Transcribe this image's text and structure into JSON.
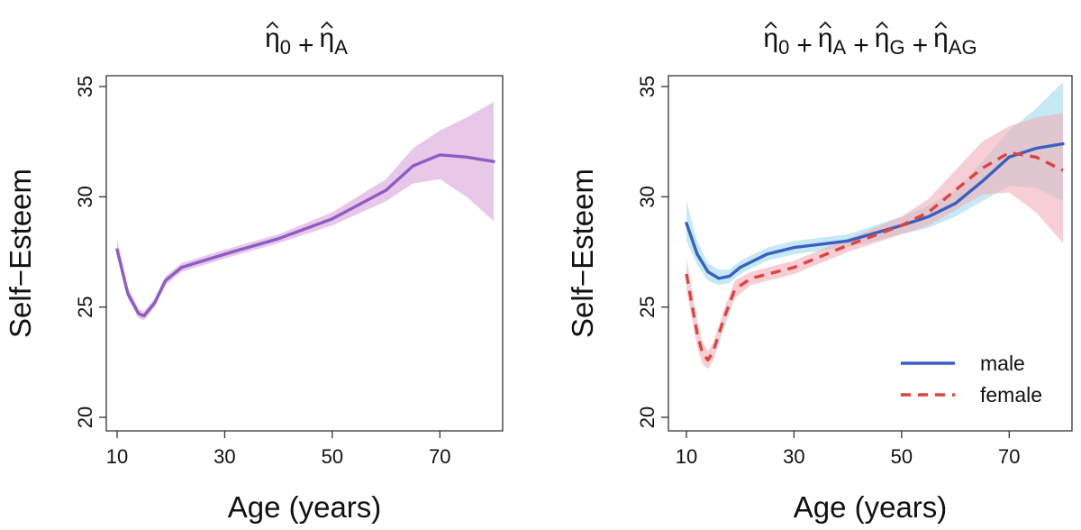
{
  "chart_data": [
    {
      "type": "line",
      "title_parts": [
        {
          "base": "η",
          "sub": "0",
          "op": "+"
        },
        {
          "base": "η",
          "sub": "A",
          "op": ""
        }
      ],
      "xlabel": "Age (years)",
      "ylabel": "Self−Esteem",
      "xlim": [
        10,
        80
      ],
      "ylim": [
        20,
        35
      ],
      "xticks": [
        10,
        30,
        50,
        70
      ],
      "yticks": [
        20,
        25,
        30,
        35
      ],
      "grid": false,
      "legend": null,
      "series": [
        {
          "color": "#8e5cc5",
          "band_color": "#d9a4d8",
          "dash": "",
          "x": [
            10,
            12,
            14,
            15,
            17,
            19,
            22,
            30,
            40,
            50,
            60,
            65,
            70,
            75,
            80
          ],
          "y": [
            27.6,
            25.6,
            24.7,
            24.6,
            25.2,
            26.2,
            26.8,
            27.4,
            28.1,
            29.0,
            30.3,
            31.4,
            31.9,
            31.8,
            31.6
          ],
          "lower": [
            27.3,
            25.4,
            24.5,
            24.4,
            25.0,
            26.0,
            26.6,
            27.2,
            27.9,
            28.7,
            29.8,
            30.6,
            30.8,
            30.0,
            28.9
          ],
          "upper": [
            28.1,
            25.9,
            24.9,
            24.8,
            25.4,
            26.4,
            27.0,
            27.6,
            28.3,
            29.3,
            30.8,
            32.2,
            33.0,
            33.6,
            34.3
          ]
        }
      ]
    },
    {
      "type": "line",
      "title_parts": [
        {
          "base": "η",
          "sub": "0",
          "op": "+"
        },
        {
          "base": "η",
          "sub": "A",
          "op": "+"
        },
        {
          "base": "η",
          "sub": "G",
          "op": "+"
        },
        {
          "base": "η",
          "sub": "AG",
          "op": ""
        }
      ],
      "xlabel": "Age (years)",
      "ylabel": "Self−Esteem",
      "xlim": [
        10,
        80
      ],
      "ylim": [
        20,
        35
      ],
      "xticks": [
        10,
        30,
        50,
        70
      ],
      "yticks": [
        20,
        25,
        30,
        35
      ],
      "grid": false,
      "legend": "bottom-right",
      "series": [
        {
          "name": "male",
          "color": "#3a5fbf",
          "band_color": "#9fdcee",
          "dash": "",
          "x": [
            10,
            12,
            14,
            16,
            18,
            20,
            25,
            30,
            40,
            50,
            55,
            60,
            65,
            70,
            75,
            80
          ],
          "y": [
            28.8,
            27.4,
            26.6,
            26.3,
            26.4,
            26.8,
            27.4,
            27.7,
            28.0,
            28.7,
            29.1,
            29.7,
            30.7,
            31.8,
            32.2,
            32.4
          ],
          "lower": [
            28.0,
            26.9,
            26.2,
            26.0,
            26.1,
            26.5,
            27.1,
            27.4,
            27.7,
            28.3,
            28.6,
            29.1,
            29.8,
            30.5,
            30.4,
            29.8
          ],
          "upper": [
            29.8,
            28.0,
            27.0,
            26.7,
            26.7,
            27.1,
            27.7,
            28.0,
            28.3,
            29.1,
            29.6,
            30.3,
            31.6,
            33.0,
            34.0,
            35.2
          ]
        },
        {
          "name": "female",
          "color": "#e0433e",
          "band_color": "#f2aeb6",
          "dash": "11 8",
          "x": [
            10,
            12,
            13,
            14,
            15,
            17,
            19,
            22,
            30,
            40,
            50,
            55,
            60,
            65,
            70,
            75,
            80
          ],
          "y": [
            26.5,
            23.8,
            22.9,
            22.6,
            23.0,
            24.5,
            25.8,
            26.3,
            26.8,
            27.8,
            28.7,
            29.3,
            30.3,
            31.3,
            32.0,
            31.8,
            31.2
          ],
          "lower": [
            25.8,
            23.2,
            22.4,
            22.2,
            22.6,
            24.1,
            25.4,
            26.0,
            26.5,
            27.5,
            28.3,
            28.7,
            29.4,
            30.1,
            30.2,
            29.3,
            27.9
          ],
          "upper": [
            27.2,
            24.4,
            23.4,
            23.0,
            23.4,
            24.9,
            26.2,
            26.6,
            27.1,
            28.1,
            29.1,
            29.9,
            31.2,
            32.5,
            33.2,
            33.6,
            33.8
          ]
        }
      ]
    }
  ]
}
